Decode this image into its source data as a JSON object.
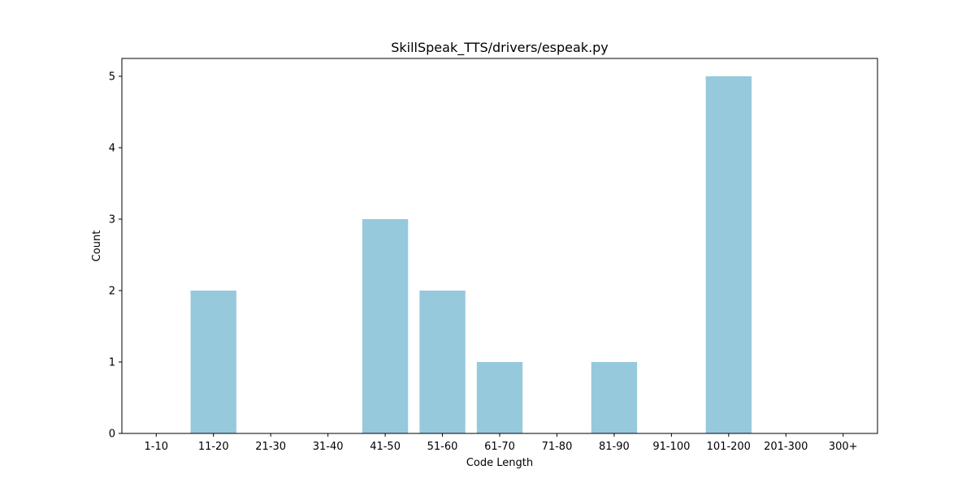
{
  "chart_data": {
    "type": "bar",
    "title": "SkillSpeak_TTS/drivers/espeak.py",
    "xlabel": "Code Length",
    "ylabel": "Count",
    "categories": [
      "1-10",
      "11-20",
      "21-30",
      "31-40",
      "41-50",
      "51-60",
      "61-70",
      "71-80",
      "81-90",
      "91-100",
      "101-200",
      "201-300",
      "300+"
    ],
    "values": [
      0,
      2,
      0,
      0,
      3,
      2,
      1,
      0,
      1,
      0,
      5,
      0,
      0
    ],
    "ylim": [
      0,
      5.25
    ],
    "yticks": [
      0,
      1,
      2,
      3,
      4,
      5
    ],
    "bar_color": "#96c9dc",
    "grid": false,
    "legend": "none"
  }
}
